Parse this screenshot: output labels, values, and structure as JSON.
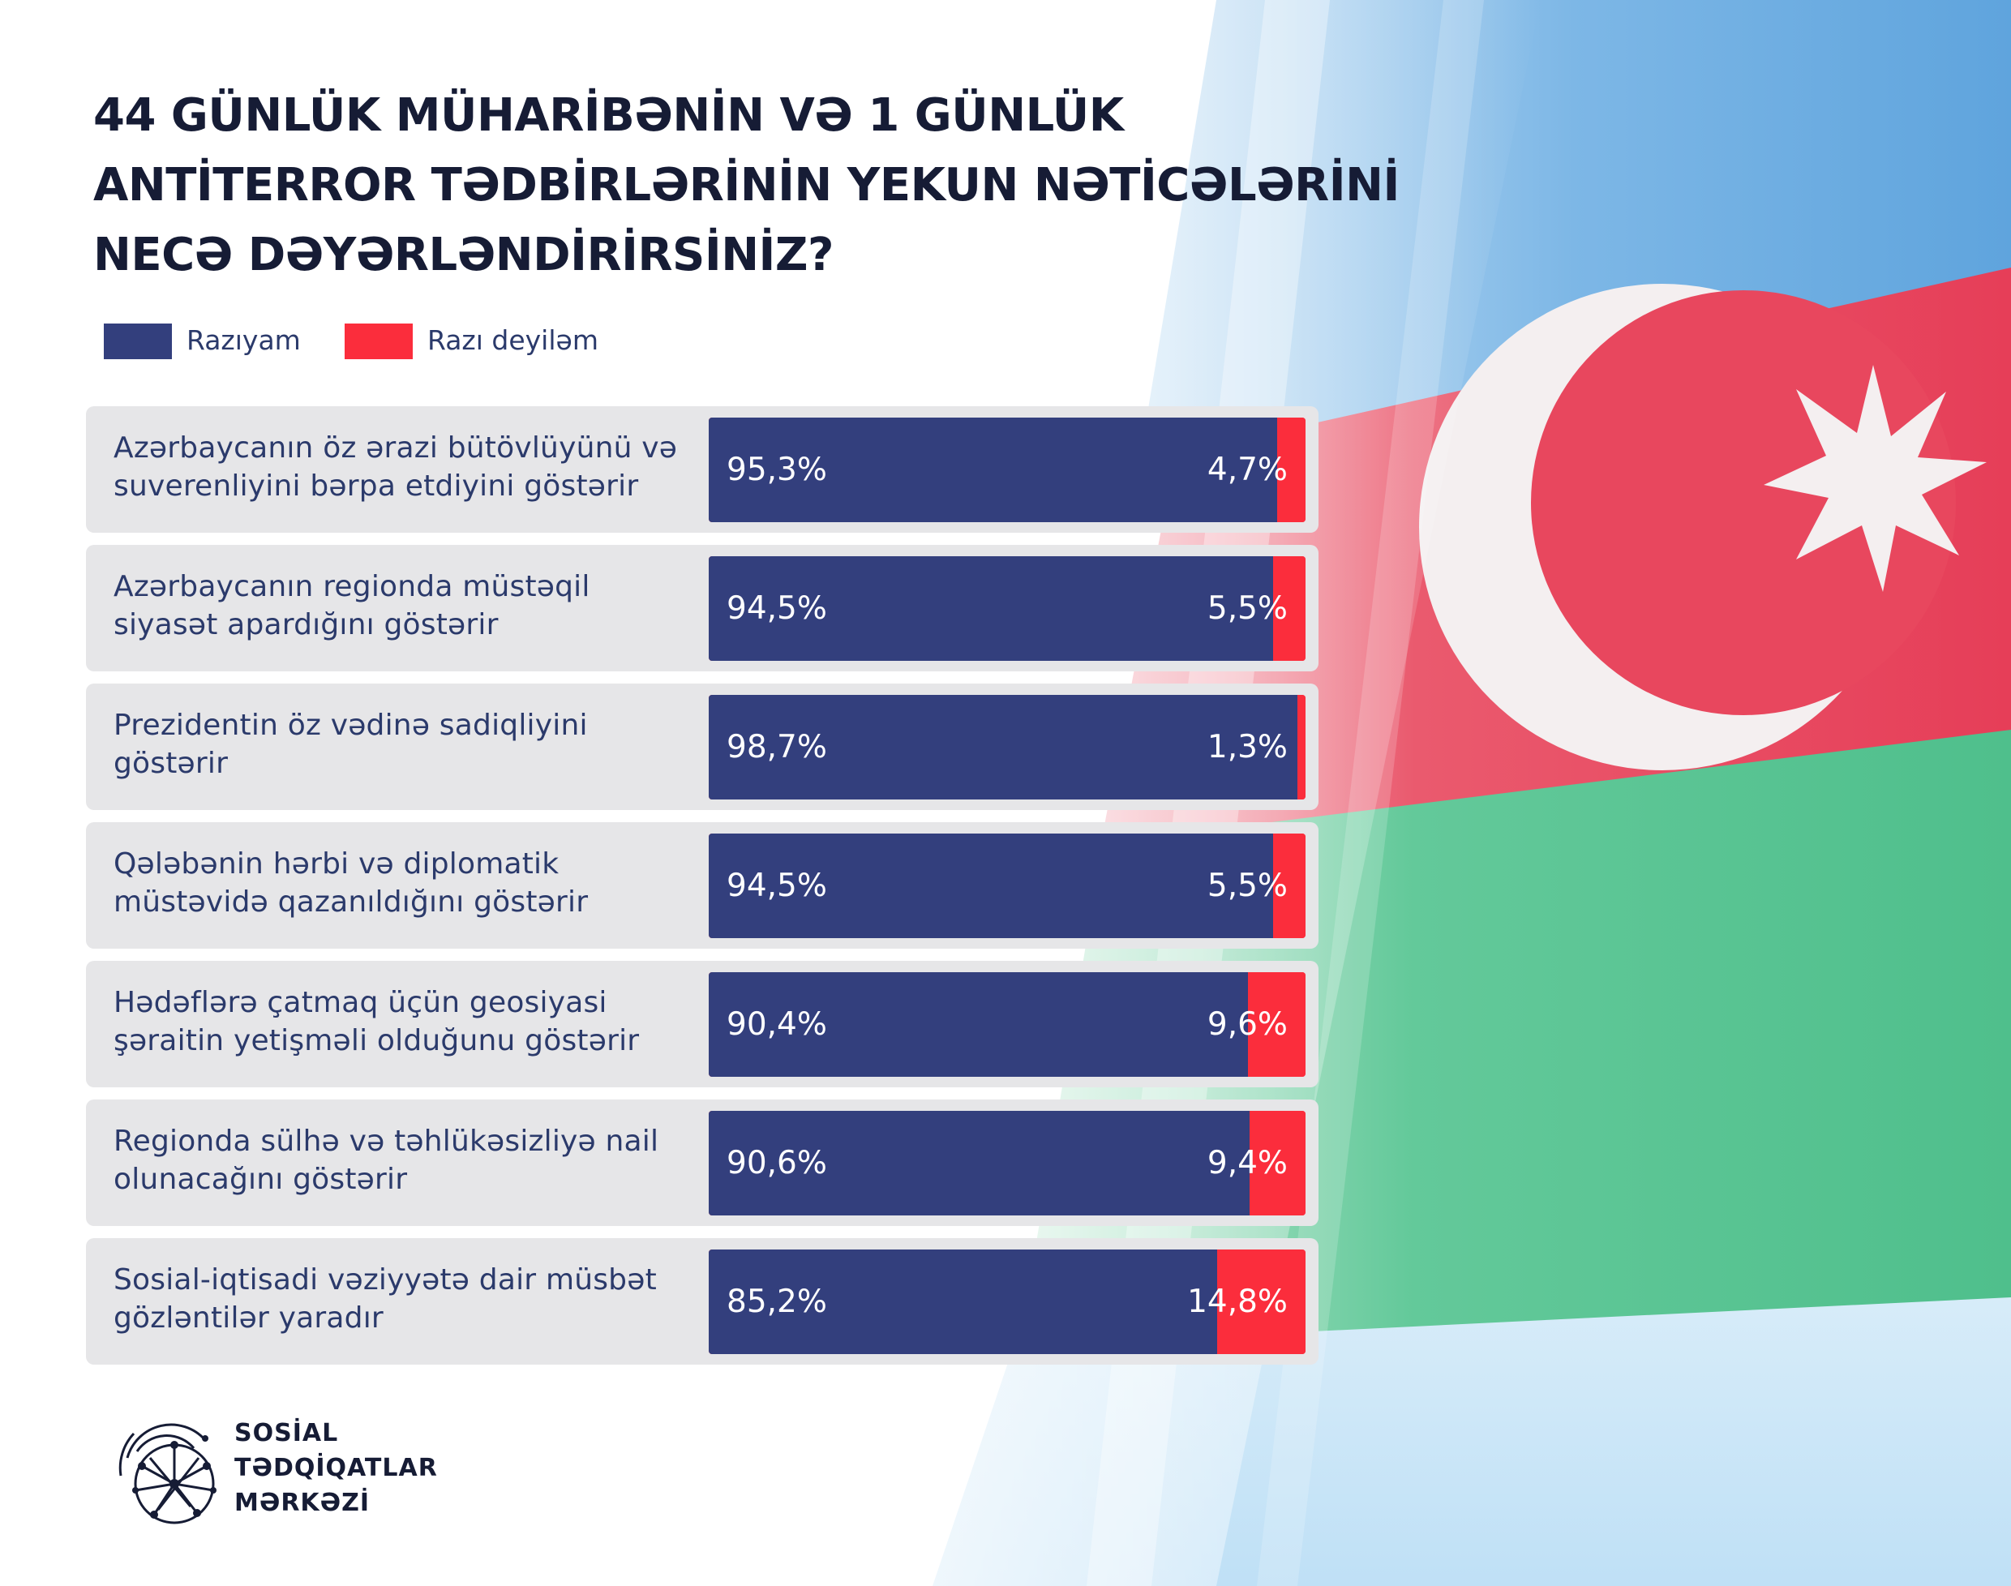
{
  "title_lines": [
    "44 GÜNLÜK MÜHARİBƏNİN VƏ 1 GÜNLÜK",
    "ANTİTERROR TƏDBİRLƏRİNİN YEKUN NƏTİCƏLƏRİNİ",
    "NECƏ DƏYƏRLƏNDİRİRSİNİZ?"
  ],
  "organization": {
    "lines": [
      "SOSİAL",
      "TƏDQİQATLAR",
      "MƏRKƏZİ"
    ],
    "logo_icon": "network-globe-logo-icon"
  },
  "colors": {
    "agree": "#333f7d",
    "disagree": "#fb2d3c",
    "row_bg": "#e6e6e8",
    "text": "#2b3a6b",
    "title": "#161c35"
  },
  "background": {
    "icon": "azerbaijan-flag-image"
  },
  "chart_data": {
    "type": "bar",
    "orientation": "horizontal",
    "stacked": true,
    "percent_scale": true,
    "legend_position": "top-left",
    "series": [
      {
        "name": "Razıyam",
        "color": "#333f7d",
        "value_labels": [
          "95,3%",
          "94,5%",
          "98,7%",
          "94,5%",
          "90,4%",
          "90,6%",
          "85,2%"
        ]
      },
      {
        "name": "Razı deyiləm",
        "color": "#fb2d3c",
        "value_labels": [
          "4,7%",
          "5,5%",
          "1,3%",
          "5,5%",
          "9,6%",
          "9,4%",
          "14,8%"
        ]
      }
    ],
    "categories": [
      "Azərbaycanın öz ərazi bütövlüyünü və\nsuverenliyini bərpa etdiyini göstərir",
      "Azərbaycanın regionda müstəqil\nsiyasət apardığını göstərir",
      "Prezidentin öz vədinə sadiqliyini\ngöstərir",
      "Qələbənin hərbi və diplomatik\nmüstəvidə qazanıldığını göstərir",
      "Hədəflərə çatmaq üçün geosiyasi\nşəraitin yetişməli olduğunu göstərir",
      "Regionda sülhə və təhlükəsizliyə nail\nolunacağını göstərir",
      "Sosial-iqtisadi vəziyyətə dair müsbət\ngözləntilər yaradır"
    ],
    "agree_values": [
      95.3,
      94.5,
      98.7,
      94.5,
      90.4,
      90.6,
      85.2
    ],
    "disagree_values": [
      4.7,
      5.5,
      1.3,
      5.5,
      9.6,
      9.4,
      14.8
    ]
  }
}
